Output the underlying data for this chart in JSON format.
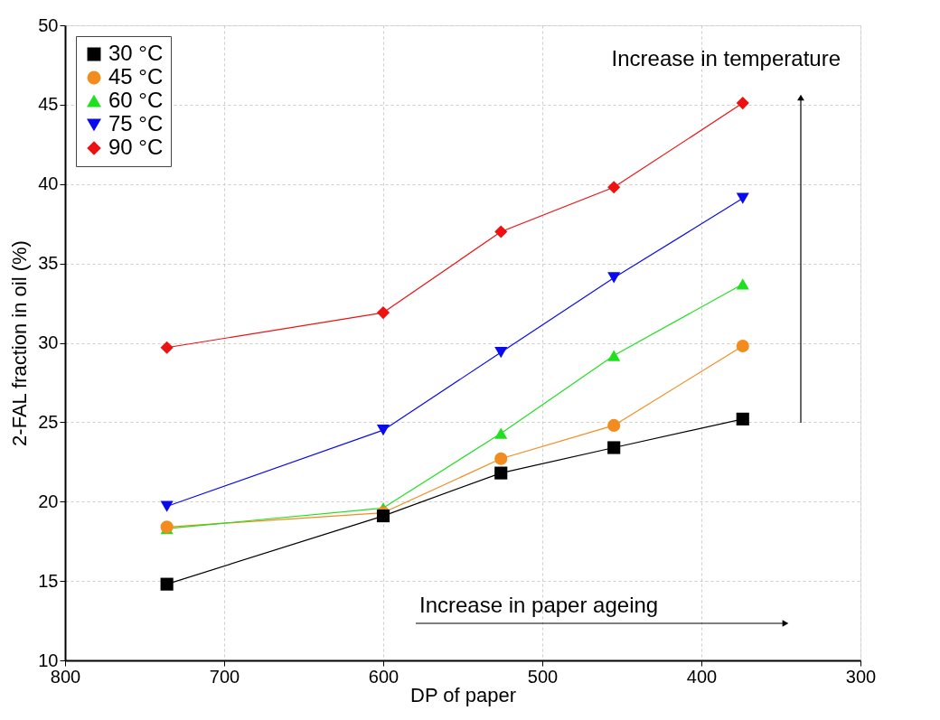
{
  "chart_data": {
    "type": "line",
    "xlabel": "DP of paper",
    "ylabel": "2-FAL fraction in oil (%)",
    "x": [
      736,
      600,
      526,
      455,
      374
    ],
    "series": [
      {
        "name": "30 °C",
        "color": "#000000",
        "marker": "square",
        "values": [
          14.8,
          19.1,
          21.8,
          23.4,
          25.2
        ]
      },
      {
        "name": "45 °C",
        "color": "#f28c1e",
        "marker": "circle",
        "values": [
          18.4,
          19.3,
          22.7,
          24.8,
          29.8
        ]
      },
      {
        "name": "60 °C",
        "color": "#1fe01f",
        "marker": "triangle",
        "values": [
          18.3,
          19.6,
          24.3,
          29.2,
          33.7
        ]
      },
      {
        "name": "75 °C",
        "color": "#0a0aee",
        "marker": "triangle-down",
        "values": [
          19.7,
          24.5,
          29.4,
          34.1,
          39.1
        ]
      },
      {
        "name": "90 °C",
        "color": "#ee1111",
        "marker": "diamond",
        "values": [
          29.7,
          31.9,
          37.0,
          39.8,
          45.1
        ]
      }
    ],
    "xlim": [
      800,
      300
    ],
    "xticks": [
      800,
      700,
      600,
      500,
      400,
      300
    ],
    "ylim": [
      10,
      50
    ],
    "yticks": [
      10,
      15,
      20,
      25,
      30,
      35,
      40,
      45,
      50
    ],
    "grid": true,
    "legend": "top left",
    "line_style": "solid",
    "annotations": [
      "Increase in temperature",
      "Increase in paper ageing"
    ]
  }
}
